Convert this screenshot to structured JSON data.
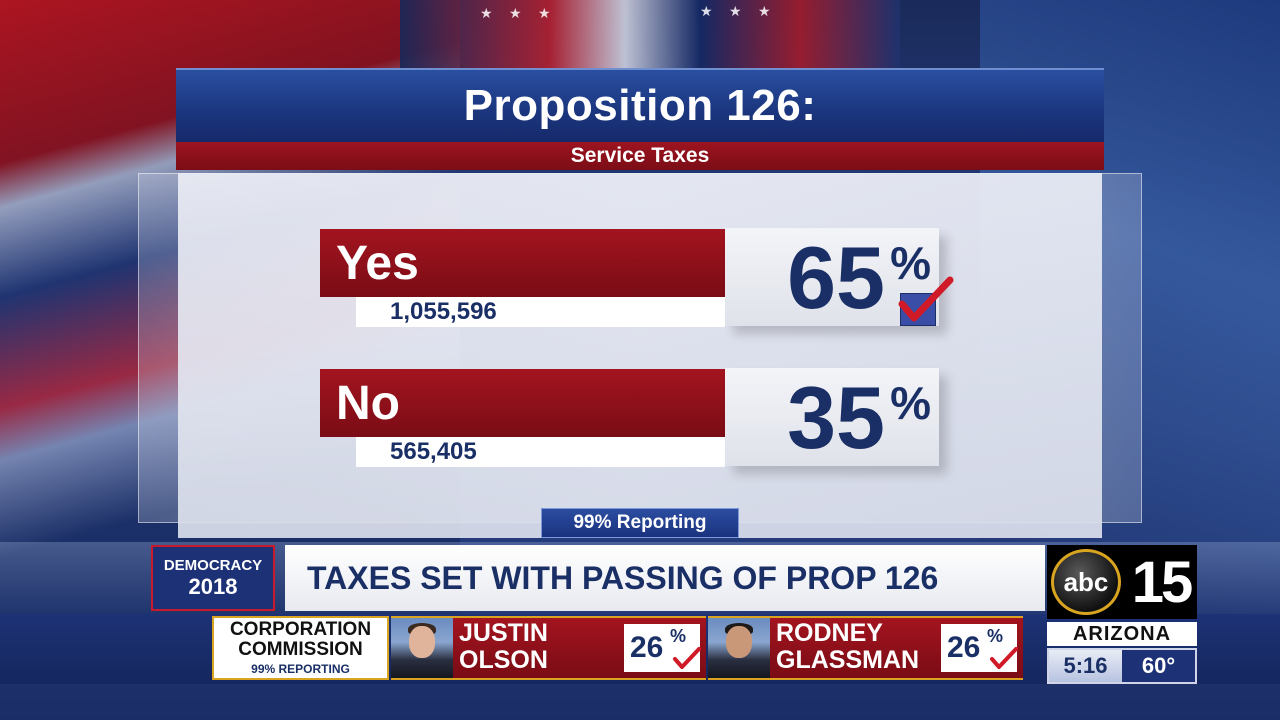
{
  "proposition": {
    "title": "Proposition 126:",
    "subtitle": "Service Taxes",
    "reporting": "99% Reporting",
    "options": [
      {
        "label": "Yes",
        "votes": "1,055,596",
        "percent": "65",
        "percent_sign": "%",
        "winner": true
      },
      {
        "label": "No",
        "votes": "565,405",
        "percent": "35",
        "percent_sign": "%",
        "winner": false
      }
    ]
  },
  "lower_third": {
    "brand_line1": "DEMOCRACY",
    "brand_line2": "2018",
    "headline": "TAXES SET WITH PASSING OF PROP 126"
  },
  "station": {
    "network": "abc",
    "channel": "15",
    "market": "ARIZONA",
    "time": "5:16",
    "temperature": "60°"
  },
  "ticker": {
    "race_line1": "CORPORATION",
    "race_line2": "COMMISSION",
    "race_reporting": "99% REPORTING",
    "candidates": [
      {
        "first": "JUSTIN",
        "last": "OLSON",
        "percent": "26",
        "percent_sign": "%"
      },
      {
        "first": "RODNEY",
        "last": "GLASSMAN",
        "percent": "26",
        "percent_sign": "%"
      }
    ]
  },
  "colors": {
    "navy": "#1a2f66",
    "red": "#a3141f",
    "gold": "#d9a520"
  }
}
